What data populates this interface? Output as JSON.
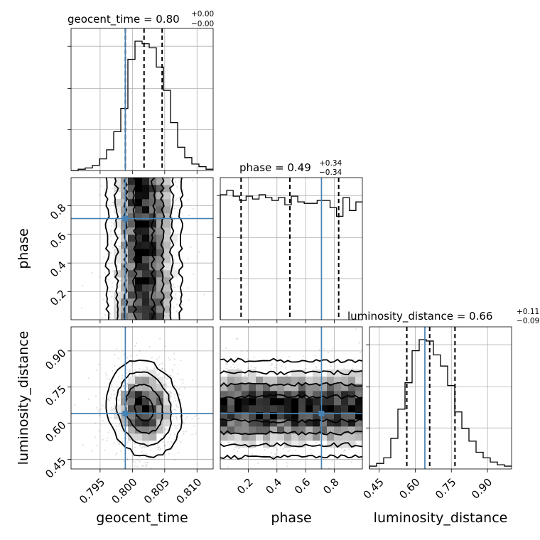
{
  "chart_data": {
    "type": "corner",
    "parameters": [
      {
        "name": "geocent_time",
        "xlabel": "geocent_time",
        "title": "geocent_time = 0.80",
        "title_sup": "+0.00",
        "title_sub": "−0.00",
        "median": 0.8,
        "err_plus": 0.0,
        "err_minus": 0.0,
        "range": [
          0.7905,
          0.8125
        ],
        "ticks": [
          0.795,
          0.8,
          0.805,
          0.81
        ],
        "tick_labels": [
          "0.795",
          "0.800",
          "0.805",
          "0.810"
        ],
        "truth": 0.7989,
        "quantiles": [
          0.7989,
          0.8018,
          0.8046
        ],
        "hist_edges_range": [
          0.7905,
          0.8125
        ],
        "hist_counts": [
          0,
          1,
          2,
          4,
          9,
          16,
          30,
          48,
          86,
          100,
          98,
          95,
          80,
          62,
          37,
          18,
          10,
          5,
          3,
          1
        ]
      },
      {
        "name": "phase",
        "xlabel": "phase",
        "ylabel": "phase",
        "title": "phase = 0.49",
        "title_sup": "+0.34",
        "title_sub": "−0.34",
        "median": 0.49,
        "err_plus": 0.34,
        "err_minus": 0.34,
        "range": [
          0.005,
          0.995
        ],
        "ticks": [
          0.2,
          0.4,
          0.6,
          0.8
        ],
        "tick_labels": [
          "0.2",
          "0.4",
          "0.6",
          "0.8"
        ],
        "truth": 0.71,
        "quantiles": [
          0.15,
          0.49,
          0.83
        ],
        "hist_edges_range": [
          0.005,
          0.995
        ],
        "hist_counts": [
          87,
          90,
          86,
          83,
          86,
          84,
          87,
          85,
          83,
          85,
          80,
          86,
          82,
          81,
          81,
          83,
          83,
          78,
          72,
          85,
          76,
          82
        ]
      },
      {
        "name": "luminosity_distance",
        "xlabel": "luminosity_distance",
        "ylabel": "luminosity_distance",
        "title": "luminosity_distance = 0.66",
        "title_sup": "+0.11",
        "title_sub": "−0.09",
        "median": 0.66,
        "err_plus": 0.11,
        "err_minus": 0.09,
        "range": [
          0.41,
          1.0
        ],
        "ticks": [
          0.45,
          0.6,
          0.75,
          0.9
        ],
        "tick_labels": [
          "0.45",
          "0.60",
          "0.75",
          "0.90"
        ],
        "truth": 0.64,
        "quantiles": [
          0.565,
          0.66,
          0.765
        ],
        "hist_edges_range": [
          0.41,
          1.0
        ],
        "hist_counts": [
          2,
          4,
          8,
          22,
          43,
          62,
          85,
          93,
          92,
          82,
          74,
          60,
          41,
          29,
          20,
          12,
          8,
          5,
          3,
          2
        ]
      }
    ],
    "truth_color": "#4682b4",
    "quantile_style": "dashed",
    "grid": true
  }
}
